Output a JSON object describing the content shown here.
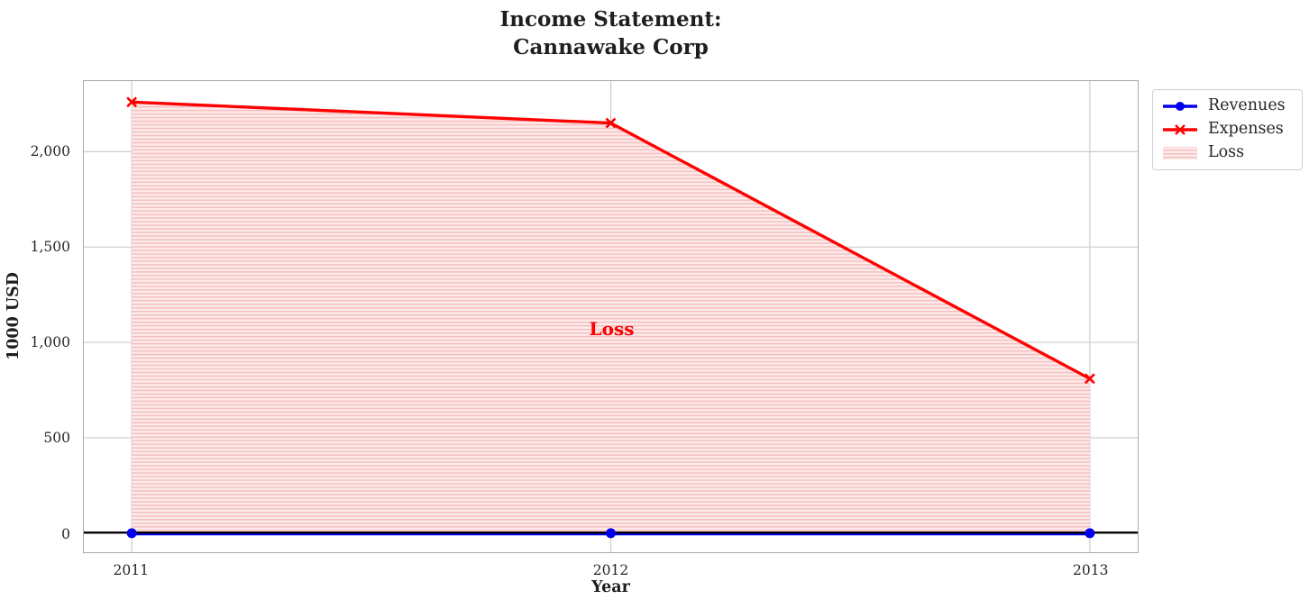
{
  "figure": {
    "title_line1": "Income Statement:",
    "title_line2": "Cannawake Corp",
    "xlabel": "Year",
    "ylabel": "1000 USD",
    "annotation": "Loss"
  },
  "legend": {
    "items": [
      {
        "label": "Revenues",
        "marker": "line-circle",
        "color": "#0000ee"
      },
      {
        "label": "Expenses",
        "marker": "line-x",
        "color": "#ff0000"
      },
      {
        "label": "Loss",
        "marker": "hatch-patch",
        "color": "#f9c8c8"
      }
    ]
  },
  "chart_data": {
    "type": "line",
    "title": "Income Statement:\nCannawake Corp",
    "xlabel": "Year",
    "ylabel": "1000 USD",
    "categories": [
      2011,
      2012,
      2013
    ],
    "series": [
      {
        "name": "Revenues",
        "color": "#0000ee",
        "marker": "circle",
        "line_width": 3.2,
        "values": [
          0,
          0,
          0
        ]
      },
      {
        "name": "Expenses",
        "color": "#ff0000",
        "marker": "x",
        "line_width": 3.4,
        "values": [
          2260,
          2150,
          810
        ]
      }
    ],
    "loss_fill": {
      "label": "Loss",
      "between": [
        "Expenses",
        "Revenues"
      ],
      "facecolor": "#fdeaea",
      "hatch": "horizontal-lines",
      "hatch_color": "#f5bcbc"
    },
    "annotation": {
      "text": "Loss",
      "x": 2012,
      "y": 1075,
      "color": "#ff0000"
    },
    "xticks": [
      2011,
      2012,
      2013
    ],
    "xtick_labels": [
      "2011",
      "2012",
      "2013"
    ],
    "yticks": [
      0,
      500,
      1000,
      1500,
      2000
    ],
    "ytick_labels": [
      "0",
      "500",
      "1,000",
      "1,500",
      "2,000"
    ],
    "xlim": [
      2010.9,
      2013.1
    ],
    "ylim": [
      -100,
      2370
    ],
    "grid": true,
    "grid_color": "#cccccc",
    "spine_color": "#a8a8a8",
    "zero_line_color": "#000000",
    "legend_position": "outside-upper-right"
  }
}
